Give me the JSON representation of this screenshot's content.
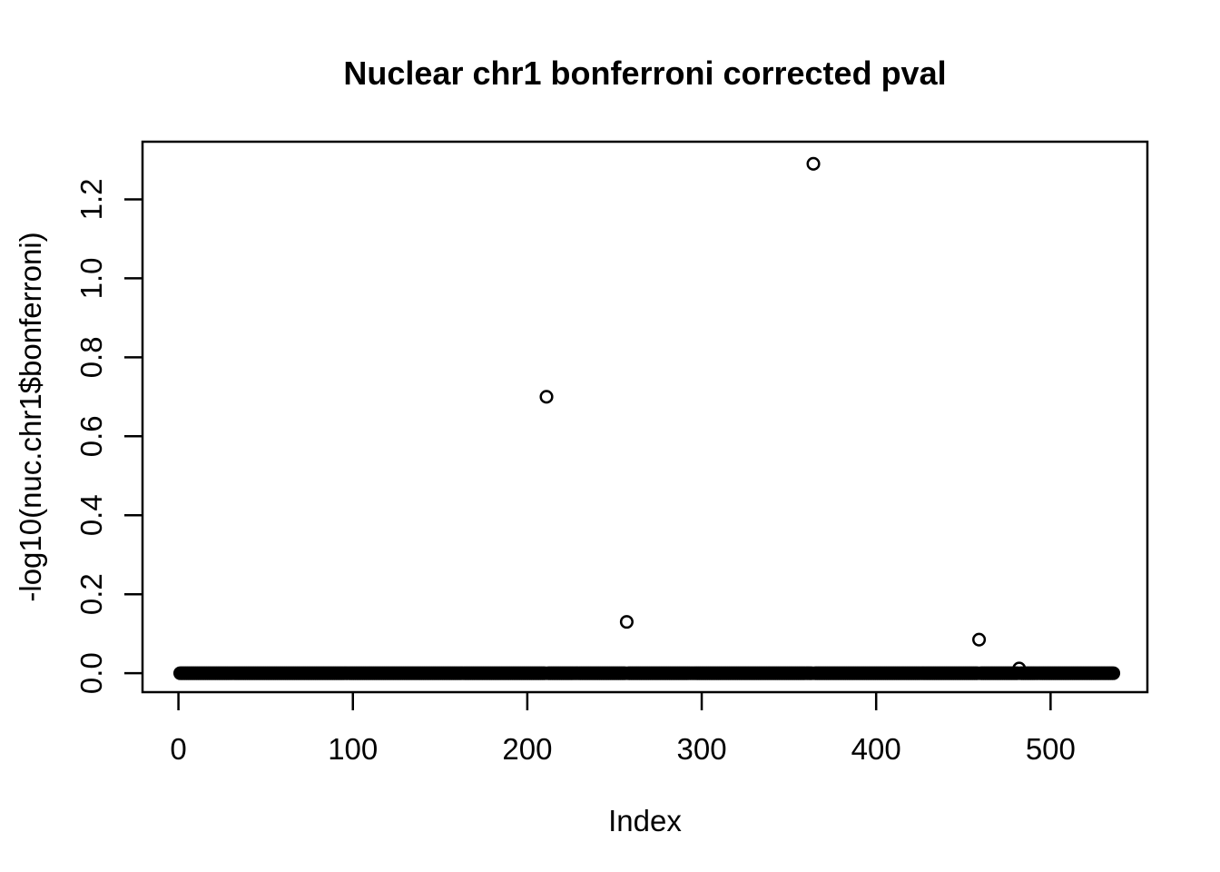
{
  "chart_data": {
    "type": "scatter",
    "title": "Nuclear chr1 bonferroni corrected pval",
    "xlabel": "Index",
    "ylabel": "-log10(nuc.chr1$bonferroni)",
    "x_ticks": [
      "0",
      "100",
      "200",
      "300",
      "400",
      "500"
    ],
    "x_tick_values": [
      0,
      100,
      200,
      300,
      400,
      500
    ],
    "y_ticks": [
      "0.0",
      "0.2",
      "0.4",
      "0.6",
      "0.8",
      "1.0",
      "1.2"
    ],
    "y_tick_values": [
      0.0,
      0.2,
      0.4,
      0.6,
      0.8,
      1.0,
      1.2
    ],
    "xlim": [
      -20.6,
      555.5
    ],
    "ylim": [
      -0.048,
      1.346
    ],
    "grid": false,
    "legend": null,
    "marker": "open-circle",
    "point_color": "#000000",
    "background_color": "#ffffff",
    "baseline_series": {
      "x_start": 1,
      "x_end": 536,
      "value": 0.0
    },
    "outliers": [
      {
        "x": 211,
        "y": 0.7
      },
      {
        "x": 257,
        "y": 0.13
      },
      {
        "x": 364,
        "y": 1.29
      },
      {
        "x": 459,
        "y": 0.085
      },
      {
        "x": 482,
        "y": 0.012
      }
    ]
  }
}
